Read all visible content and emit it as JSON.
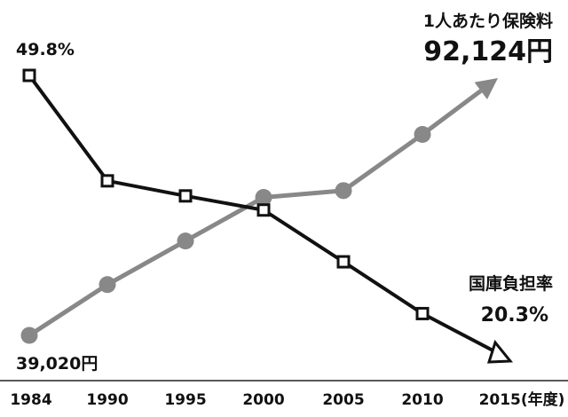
{
  "chart_data": {
    "type": "line",
    "x": [
      1984,
      1990,
      1995,
      2000,
      2005,
      2010,
      2015
    ],
    "x_tick_labels": [
      "1984",
      "1990",
      "1995",
      "2000",
      "2005",
      "2010",
      "2015(年度)"
    ],
    "series": [
      {
        "name": "1人あたり保険料",
        "unit": "円",
        "color": "#888888",
        "marker": "circle",
        "end_marker": "arrow",
        "values": [
          39020,
          49500,
          58500,
          67500,
          68900,
          80500,
          92124
        ]
      },
      {
        "name": "国庫負担率",
        "unit": "%",
        "color": "#111111",
        "marker": "square",
        "end_marker": "triangle",
        "values": [
          49.8,
          38.6,
          37.0,
          35.5,
          30.0,
          24.5,
          20.3
        ]
      }
    ],
    "annotations": {
      "premium_title": "1人あたり保険料",
      "premium_end": "92,124円",
      "premium_start": "39,020円",
      "rate_title": "国庫負担率",
      "rate_end": "20.3%",
      "rate_start": "49.8%"
    },
    "grid": false,
    "legend": "none"
  }
}
